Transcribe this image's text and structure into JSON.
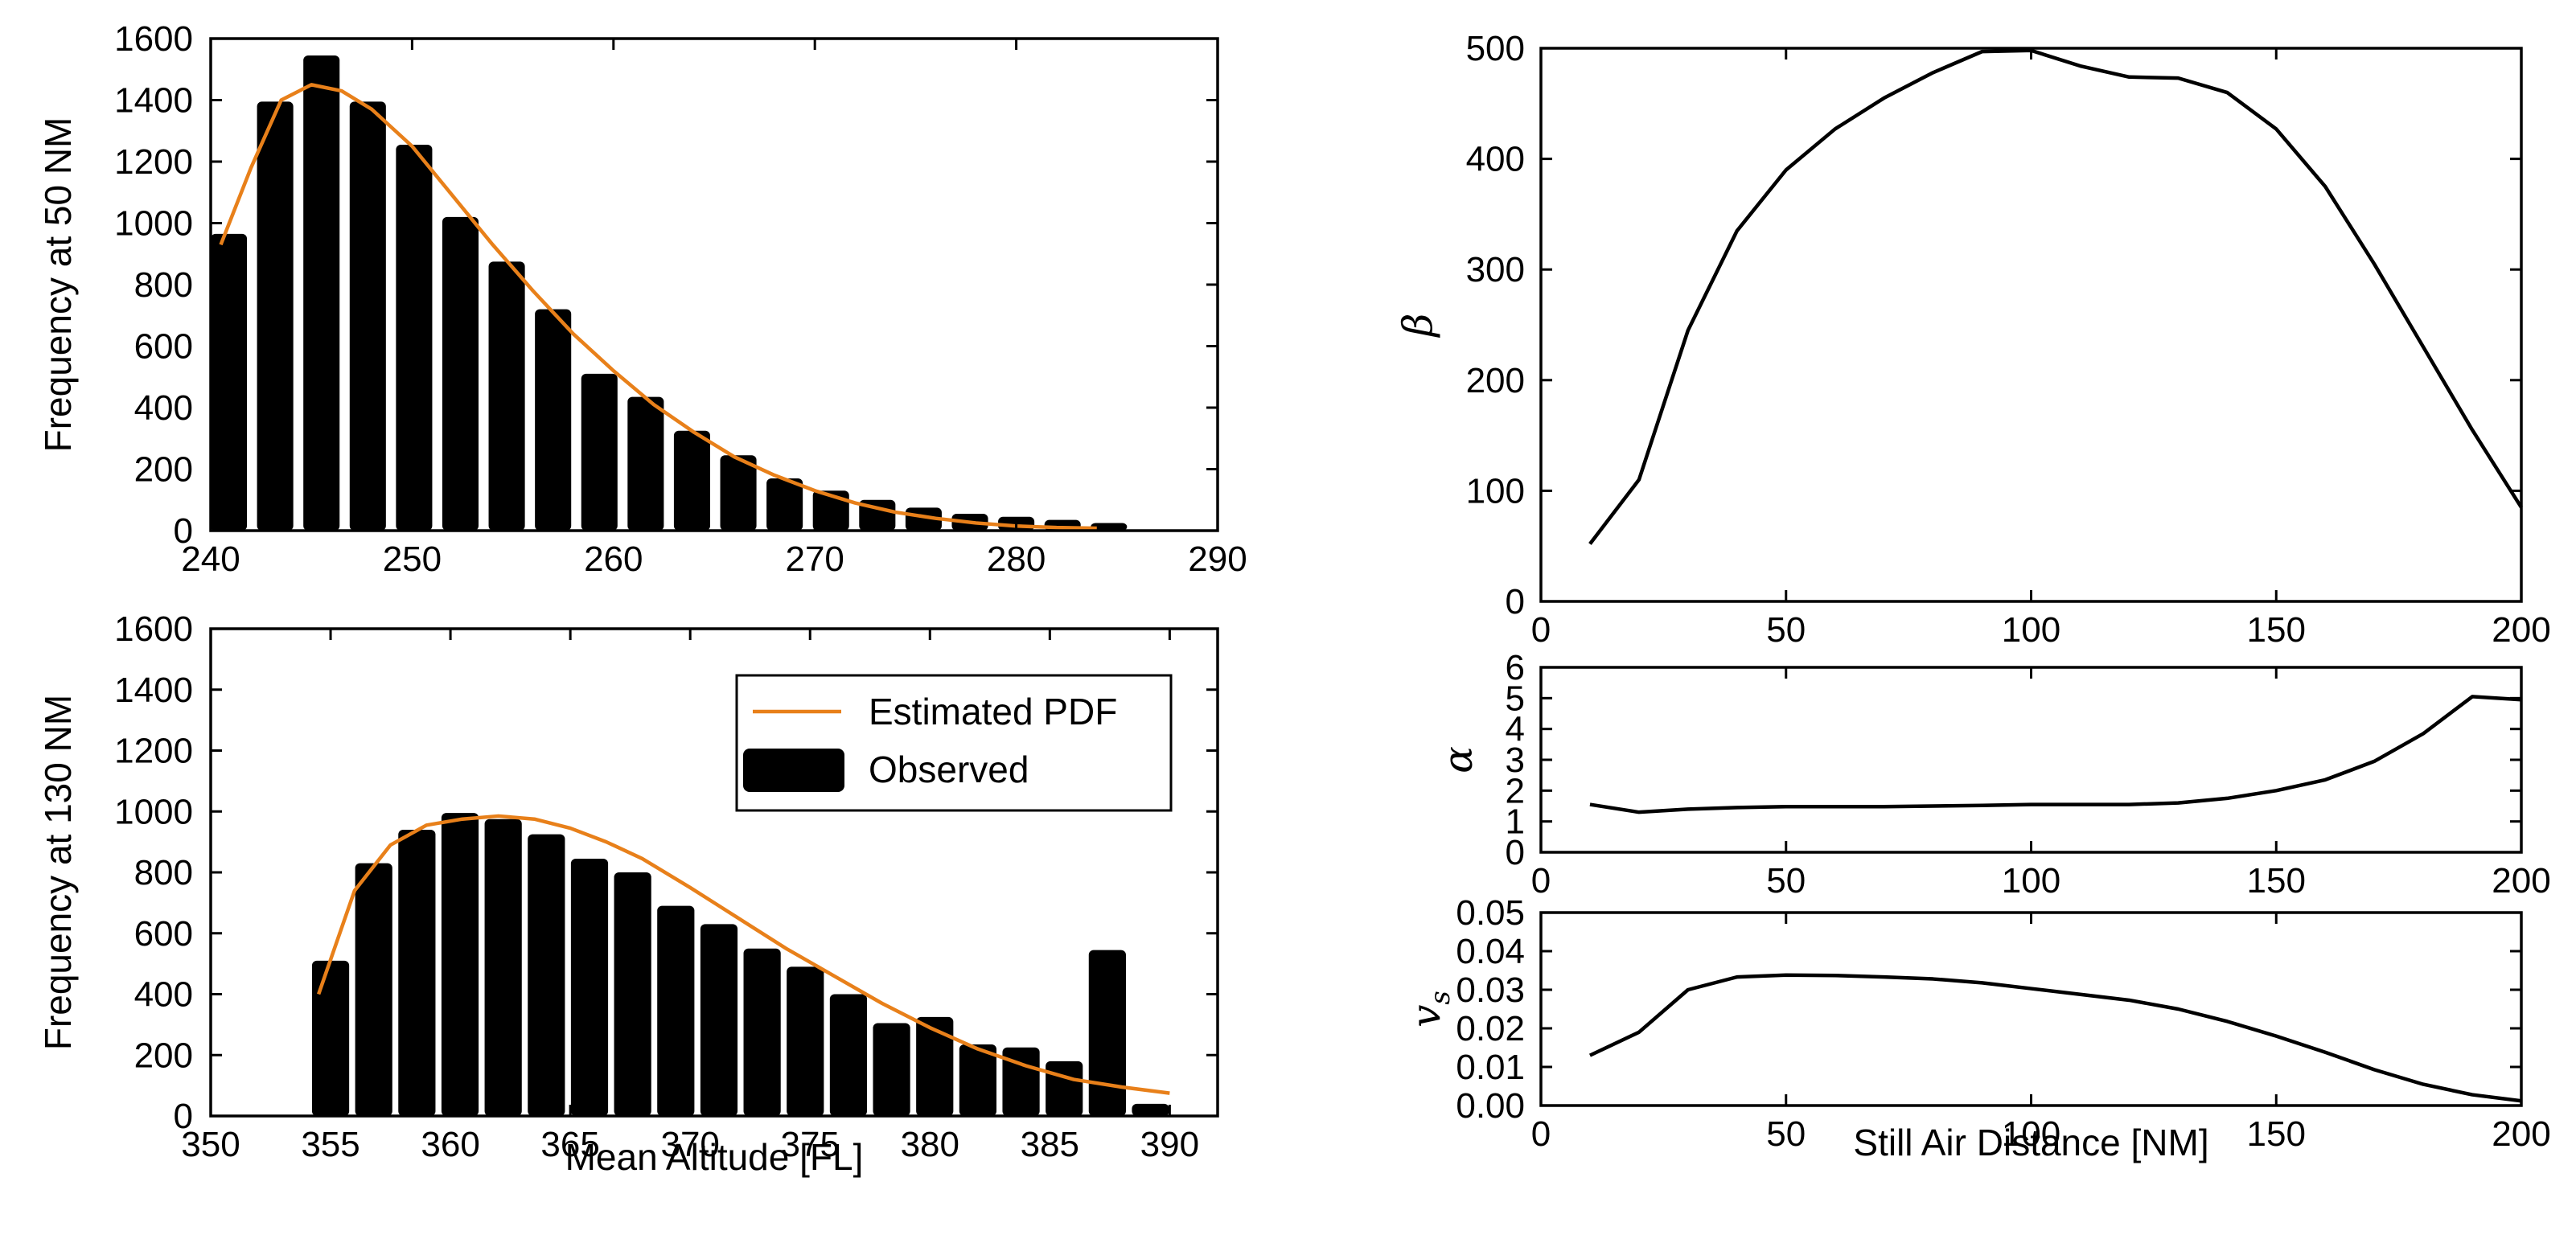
{
  "chart_data": [
    {
      "id": "top-left",
      "type": "bar",
      "title": "",
      "xlabel": "",
      "ylabel": "Frequency at 50 NM",
      "xlim": [
        240,
        290
      ],
      "ylim": [
        0,
        1600
      ],
      "xticks": [
        240,
        250,
        260,
        270,
        280,
        290
      ],
      "yticks": [
        0,
        200,
        400,
        600,
        800,
        1000,
        1200,
        1400,
        1600
      ],
      "bar_width": 1.8,
      "bars": [
        {
          "x": 240.9,
          "y": 965
        },
        {
          "x": 243.2,
          "y": 1395
        },
        {
          "x": 245.5,
          "y": 1545
        },
        {
          "x": 247.8,
          "y": 1395
        },
        {
          "x": 250.1,
          "y": 1255
        },
        {
          "x": 252.4,
          "y": 1020
        },
        {
          "x": 254.7,
          "y": 875
        },
        {
          "x": 257.0,
          "y": 720
        },
        {
          "x": 259.3,
          "y": 510
        },
        {
          "x": 261.6,
          "y": 435
        },
        {
          "x": 263.9,
          "y": 325
        },
        {
          "x": 266.2,
          "y": 245
        },
        {
          "x": 268.5,
          "y": 170
        },
        {
          "x": 270.8,
          "y": 130
        },
        {
          "x": 273.1,
          "y": 100
        },
        {
          "x": 275.4,
          "y": 75
        },
        {
          "x": 277.7,
          "y": 55
        },
        {
          "x": 280.0,
          "y": 45
        },
        {
          "x": 282.3,
          "y": 35
        },
        {
          "x": 284.6,
          "y": 25
        }
      ],
      "pdf": {
        "x": [
          240.5,
          242,
          243.5,
          245,
          246.5,
          248,
          250,
          252,
          254,
          256,
          258,
          260,
          262,
          264,
          266,
          268,
          270,
          272,
          274,
          276,
          278,
          280,
          282,
          284
        ],
        "y": [
          930,
          1180,
          1400,
          1450,
          1430,
          1370,
          1250,
          1090,
          930,
          780,
          640,
          520,
          410,
          320,
          240,
          180,
          130,
          90,
          60,
          40,
          25,
          15,
          10,
          8
        ]
      },
      "colors": {
        "bar": "#000000",
        "pdf": "#e8801a"
      }
    },
    {
      "id": "bottom-left",
      "type": "bar",
      "title": "",
      "xlabel": "Mean Altitude [FL]",
      "ylabel": "Frequency at 130 NM",
      "xlim": [
        350,
        392
      ],
      "ylim": [
        0,
        1600
      ],
      "xticks": [
        350,
        355,
        360,
        365,
        370,
        375,
        380,
        385,
        390
      ],
      "yticks": [
        0,
        200,
        400,
        600,
        800,
        1000,
        1200,
        1400,
        1600
      ],
      "bar_width": 1.55,
      "bars": [
        {
          "x": 355.0,
          "y": 510
        },
        {
          "x": 356.8,
          "y": 830
        },
        {
          "x": 358.6,
          "y": 940
        },
        {
          "x": 360.4,
          "y": 995
        },
        {
          "x": 362.2,
          "y": 975
        },
        {
          "x": 364.0,
          "y": 925
        },
        {
          "x": 365.8,
          "y": 845
        },
        {
          "x": 367.6,
          "y": 800
        },
        {
          "x": 369.4,
          "y": 690
        },
        {
          "x": 371.2,
          "y": 630
        },
        {
          "x": 373.0,
          "y": 550
        },
        {
          "x": 374.8,
          "y": 490
        },
        {
          "x": 376.6,
          "y": 400
        },
        {
          "x": 378.4,
          "y": 305
        },
        {
          "x": 380.2,
          "y": 325
        },
        {
          "x": 382.0,
          "y": 235
        },
        {
          "x": 383.8,
          "y": 225
        },
        {
          "x": 385.6,
          "y": 180
        },
        {
          "x": 387.4,
          "y": 545
        },
        {
          "x": 389.2,
          "y": 40
        }
      ],
      "pdf": {
        "x": [
          354.5,
          356,
          357.5,
          359,
          360.5,
          362,
          363.5,
          365,
          366.5,
          368,
          370,
          372,
          374,
          376,
          378,
          380,
          382,
          384,
          386,
          388,
          390
        ],
        "y": [
          400,
          740,
          890,
          955,
          975,
          985,
          975,
          945,
          900,
          845,
          750,
          650,
          550,
          460,
          370,
          290,
          220,
          165,
          120,
          95,
          75
        ]
      },
      "legend": {
        "position": "top-right",
        "entries": [
          "Estimated PDF",
          "Observed"
        ]
      },
      "colors": {
        "bar": "#000000",
        "pdf": "#e8801a"
      }
    },
    {
      "id": "right-beta",
      "type": "line",
      "xlabel": "",
      "ylabel": "β",
      "xlim": [
        0,
        200
      ],
      "ylim": [
        0,
        500
      ],
      "xticks": [
        0,
        50,
        100,
        150,
        200
      ],
      "yticks": [
        0,
        100,
        200,
        300,
        400,
        500
      ],
      "series": [
        {
          "name": "beta",
          "x": [
            10,
            20,
            30,
            40,
            50,
            60,
            70,
            80,
            90,
            100,
            110,
            120,
            130,
            140,
            150,
            160,
            170,
            180,
            190,
            200
          ],
          "y": [
            52,
            110,
            245,
            335,
            390,
            427,
            455,
            478,
            497,
            498,
            484,
            474,
            473,
            460,
            427,
            375,
            305,
            230,
            155,
            85
          ]
        }
      ]
    },
    {
      "id": "right-alpha",
      "type": "line",
      "xlabel": "",
      "ylabel": "α",
      "xlim": [
        0,
        200
      ],
      "ylim": [
        0,
        6
      ],
      "xticks": [
        0,
        50,
        100,
        150,
        200
      ],
      "yticks": [
        0,
        1,
        2,
        3,
        4,
        5,
        6
      ],
      "series": [
        {
          "name": "alpha",
          "x": [
            10,
            20,
            30,
            40,
            50,
            60,
            70,
            80,
            90,
            100,
            110,
            120,
            130,
            140,
            150,
            160,
            170,
            180,
            190,
            200
          ],
          "y": [
            1.55,
            1.3,
            1.4,
            1.45,
            1.48,
            1.48,
            1.48,
            1.5,
            1.52,
            1.55,
            1.55,
            1.55,
            1.6,
            1.75,
            2.0,
            2.35,
            2.95,
            3.85,
            5.05,
            4.95
          ]
        }
      ]
    },
    {
      "id": "right-vs",
      "type": "line",
      "xlabel": "Still Air Distance [NM]",
      "ylabel": "vs",
      "ylabel_main": "v",
      "ylabel_sub": "s",
      "xlim": [
        0,
        200
      ],
      "ylim": [
        0,
        0.05
      ],
      "xticks": [
        0,
        50,
        100,
        150,
        200
      ],
      "yticks": [
        "0.00",
        "0.01",
        "0.02",
        "0.03",
        "0.04",
        "0.05"
      ],
      "series": [
        {
          "name": "vs",
          "x": [
            10,
            20,
            30,
            40,
            50,
            60,
            70,
            80,
            90,
            100,
            110,
            120,
            130,
            140,
            150,
            160,
            170,
            180,
            190,
            200
          ],
          "y": [
            0.013,
            0.019,
            0.03,
            0.0333,
            0.0338,
            0.0337,
            0.0333,
            0.0328,
            0.0318,
            0.0303,
            0.0288,
            0.0273,
            0.025,
            0.0218,
            0.018,
            0.0138,
            0.0093,
            0.0055,
            0.0028,
            0.0012
          ]
        }
      ]
    }
  ]
}
